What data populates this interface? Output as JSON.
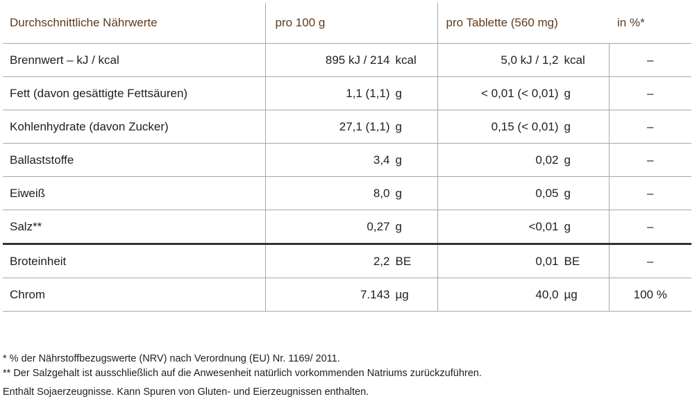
{
  "table": {
    "headers": {
      "nutrient": "Durchschnittliche Nährwerte",
      "per100": "pro 100 g",
      "perTablet": "pro Tablette (560 mg)",
      "percent": "in %*"
    },
    "rows": [
      {
        "name": "Brennwert – kJ / kcal",
        "per100_value": "895 kJ / 214",
        "per100_unit": "kcal",
        "tab_value": "5,0 kJ / 1,2",
        "tab_unit": "kcal",
        "percent": "–"
      },
      {
        "name": "Fett (davon gesättigte Fettsäuren)",
        "per100_value": "1,1 (1,1)",
        "per100_unit": "g",
        "tab_value": "< 0,01 (< 0,01)",
        "tab_unit": "g",
        "percent": "–"
      },
      {
        "name": "Kohlenhydrate (davon Zucker)",
        "per100_value": "27,1 (1,1)",
        "per100_unit": "g",
        "tab_value": "0,15 (< 0,01)",
        "tab_unit": "g",
        "percent": "–"
      },
      {
        "name": "Ballaststoffe",
        "per100_value": "3,4",
        "per100_unit": "g",
        "tab_value": "0,02",
        "tab_unit": "g",
        "percent": "–"
      },
      {
        "name": "Eiweiß",
        "per100_value": "8,0",
        "per100_unit": "g",
        "tab_value": "0,05",
        "tab_unit": "g",
        "percent": "–"
      },
      {
        "name": "Salz**",
        "per100_value": "0,27",
        "per100_unit": "g",
        "tab_value": "<0,01",
        "tab_unit": "g",
        "percent": "–"
      },
      {
        "name": "Broteinheit",
        "per100_value": "2,2",
        "per100_unit": "BE",
        "tab_value": "0,01",
        "tab_unit": "BE",
        "percent": "–"
      },
      {
        "name": "Chrom",
        "per100_value": "7.143",
        "per100_unit": "µg",
        "tab_value": "40,0",
        "tab_unit": "µg",
        "percent": "100 %"
      }
    ]
  },
  "footnotes": {
    "note1": "*  % der Nährstoffbezugswerte (NRV) nach Verordnung (EU) Nr. 1169/ 2011.",
    "note2": "** Der Salzgehalt ist ausschließlich auf die Anwesenheit natürlich vorkommenden Natriums zurückzuführen.",
    "note3": "Enthält Sojaerzeugnisse. Kann Spuren von Gluten- und Eierzeugnissen enthalten."
  },
  "colors": {
    "header_text": "#5e3a1c",
    "grid_line": "#a6a6a6",
    "separator_line": "#333333"
  }
}
